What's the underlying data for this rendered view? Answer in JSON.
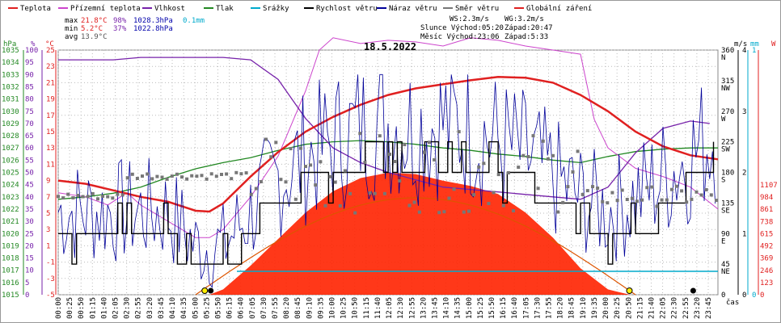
{
  "title": "18.5.2022",
  "legend": [
    {
      "label": "Teplota",
      "color": "#e02020"
    },
    {
      "label": "Přízemní teplota",
      "color": "#cc44cc"
    },
    {
      "label": "Vlhkost",
      "color": "#7722aa"
    },
    {
      "label": "Tlak",
      "color": "#228822"
    },
    {
      "label": "Srážky",
      "color": "#00aacc"
    },
    {
      "label": "Rychlost větru",
      "color": "#000000"
    },
    {
      "label": "Náraz větru",
      "color": "#000099"
    },
    {
      "label": "Směr větru",
      "color": "#777777"
    },
    {
      "label": "Globální záření",
      "color": "#e02020"
    }
  ],
  "stats": {
    "max": {
      "label": "max",
      "temp": "21.8°C",
      "hum": "98%",
      "press": "1028.3hPa",
      "rain": "0.1mm"
    },
    "min": {
      "label": "min",
      "temp": "5.2°C",
      "hum": "37%",
      "press": "1022.8hPa"
    },
    "avg": {
      "label": "avg",
      "temp": "13.9°C"
    }
  },
  "info": {
    "ws": "WS:2.3m/s",
    "wg": "WG:3.2m/s",
    "sun": "Slunce Východ:05:20",
    "sunset": "Západ:20:47",
    "moon": "Měsíc Východ:23:06",
    "moonset": "Západ:5:33"
  },
  "axes": {
    "hpa_unit": "hPa",
    "hum_unit": "%",
    "temp_unit": "°C",
    "ms_unit": "m/s",
    "mm_unit": "mm",
    "w_unit": "W",
    "time_label": "čas",
    "hpa_ticks": [
      "1035",
      "1034",
      "1033",
      "1032",
      "1031",
      "1030",
      "1029",
      "1028",
      "1027",
      "1026",
      "1025",
      "1024",
      "1023",
      "1022",
      "1021",
      "1020",
      "1019",
      "1018",
      "1017",
      "1016",
      "1015"
    ],
    "hum_ticks": [
      "100",
      "95",
      "90",
      "85",
      "80",
      "75",
      "70",
      "65",
      "60",
      "55",
      "50",
      "45",
      "40",
      "35",
      "30",
      "25",
      "20",
      "15",
      "10",
      "5",
      "0"
    ],
    "temp_ticks": [
      "25",
      "23",
      "21",
      "19",
      "17",
      "15",
      "13",
      "11",
      "9",
      "7",
      "5",
      "3",
      "1",
      "-1",
      "-3",
      "-5"
    ],
    "dir_ticks": [
      {
        "deg": "360",
        "dir": "N"
      },
      {
        "deg": "315",
        "dir": "NW"
      },
      {
        "deg": "270",
        "dir": "W"
      },
      {
        "deg": "225",
        "dir": "SW"
      },
      {
        "deg": "180",
        "dir": "S"
      },
      {
        "deg": "135",
        "dir": "SE"
      },
      {
        "deg": "90",
        "dir": "E"
      },
      {
        "deg": "45",
        "dir": "NE"
      },
      {
        "deg": "0",
        "dir": ""
      }
    ],
    "ms_ticks": [
      "4",
      "3",
      "2",
      "1",
      "0"
    ],
    "mm_ticks": [
      "1",
      "0"
    ],
    "w_ticks": [
      "1107",
      "984",
      "861",
      "738",
      "615",
      "492",
      "369",
      "246",
      "123",
      "0"
    ]
  },
  "colors": {
    "temp": "#e02020",
    "dew": "#cc44cc",
    "hum": "#7722aa",
    "press": "#228822",
    "rain": "#00aacc",
    "wind": "#000000",
    "gust": "#000099",
    "dir": "#777777",
    "rad": "#ff2200",
    "grid": "#bbbbbb"
  },
  "chart_data": {
    "type": "line",
    "title": "18.5.2022",
    "time_labels": [
      "00:00",
      "00:25",
      "00:50",
      "01:15",
      "01:40",
      "02:05",
      "02:30",
      "02:55",
      "03:20",
      "03:45",
      "04:10",
      "04:35",
      "05:00",
      "05:25",
      "05:50",
      "06:15",
      "06:40",
      "07:05",
      "07:30",
      "07:55",
      "08:20",
      "08:45",
      "09:10",
      "09:35",
      "10:00",
      "10:25",
      "10:50",
      "11:15",
      "11:40",
      "12:05",
      "12:30",
      "12:55",
      "13:20",
      "13:45",
      "14:10",
      "14:35",
      "15:00",
      "15:25",
      "15:50",
      "16:15",
      "16:40",
      "17:05",
      "17:30",
      "17:55",
      "18:20",
      "18:45",
      "19:10",
      "19:35",
      "20:00",
      "20:25",
      "20:50",
      "21:15",
      "21:40",
      "22:05",
      "22:30",
      "22:55",
      "23:20",
      "23:45"
    ],
    "series": [
      {
        "name": "Teplota",
        "unit": "°C",
        "x_hours": [
          0,
          1,
          2,
          3,
          4,
          5,
          5.5,
          6,
          7,
          8,
          9,
          10,
          11,
          12,
          13,
          14,
          15,
          16,
          17,
          18,
          19,
          20,
          21,
          22,
          23,
          24
        ],
        "values": [
          9.0,
          8.6,
          7.8,
          7.0,
          6.4,
          5.3,
          5.2,
          6.2,
          9.5,
          12.5,
          15.0,
          16.8,
          18.3,
          19.5,
          20.3,
          20.8,
          21.3,
          21.7,
          21.6,
          21.0,
          19.5,
          17.5,
          15.0,
          13.2,
          12.1,
          11.6
        ]
      },
      {
        "name": "Přízemní teplota",
        "unit": "°C",
        "x_hours": [
          0,
          1,
          1.8,
          2.5,
          3,
          4,
          5,
          5.5,
          6,
          7,
          8,
          9,
          9.5,
          10,
          11,
          12,
          13,
          14,
          15,
          16,
          17,
          18,
          19,
          19.5,
          20,
          21,
          22,
          23,
          24
        ],
        "values": [
          7.5,
          7.0,
          6.0,
          7.5,
          6.0,
          4.0,
          2.0,
          2.0,
          3.0,
          7.0,
          12.0,
          20.0,
          25.0,
          26.5,
          25.8,
          26.2,
          26.0,
          25.5,
          26.5,
          26.2,
          25.5,
          25.0,
          24.5,
          16.5,
          13.0,
          10.5,
          9.5,
          8.2,
          5.5
        ]
      },
      {
        "name": "Vlhkost",
        "unit": "%",
        "x_hours": [
          0,
          1,
          2,
          3,
          4,
          5,
          6,
          7,
          8,
          9,
          10,
          11,
          12,
          13,
          14,
          15,
          16,
          17,
          18,
          19,
          20,
          21,
          22,
          23,
          23.7
        ],
        "values": [
          96,
          96,
          96,
          97,
          97,
          97,
          97,
          96,
          88,
          72,
          60,
          54,
          50,
          47,
          44,
          43,
          42,
          41,
          40,
          39,
          44,
          58,
          68,
          71,
          70
        ]
      },
      {
        "name": "Tlak",
        "unit": "hPa",
        "x_hours": [
          0,
          1,
          2,
          3,
          4,
          5,
          6,
          7,
          8,
          9,
          10,
          11,
          12,
          13,
          14,
          15,
          16,
          17,
          18,
          19,
          20,
          21,
          22,
          23,
          24
        ],
        "values": [
          1022.8,
          1023.0,
          1023.3,
          1023.8,
          1024.6,
          1025.3,
          1025.8,
          1026.2,
          1026.8,
          1027.3,
          1027.5,
          1027.6,
          1027.5,
          1027.3,
          1027.0,
          1026.8,
          1026.5,
          1026.3,
          1026.0,
          1025.8,
          1026.3,
          1026.7,
          1026.9,
          1027.0,
          1027.0
        ]
      },
      {
        "name": "Srážky",
        "unit": "mm",
        "note": "0.1mm max"
      },
      {
        "name": "Rychlost větru",
        "unit": "m/s",
        "x_hours": [
          0,
          1,
          2,
          3,
          4,
          5,
          6,
          7,
          8,
          9,
          10,
          11,
          12,
          13,
          14,
          15,
          16,
          17,
          18,
          19,
          20,
          21,
          22,
          23,
          24
        ],
        "values": [
          1.0,
          1.0,
          1.0,
          1.0,
          1.0,
          0.5,
          0.5,
          1.0,
          1.5,
          1.8,
          2.0,
          2.2,
          2.3,
          2.2,
          2.3,
          2.2,
          2.0,
          1.8,
          1.5,
          1.2,
          1.0,
          1.2,
          1.5,
          1.8,
          2.2
        ]
      },
      {
        "name": "Náraz větru",
        "unit": "m/s",
        "max": 3.2
      },
      {
        "name": "Směr větru",
        "unit": "°"
      },
      {
        "name": "Globální záření",
        "unit": "W",
        "x_hours": [
          5.5,
          6,
          7,
          8,
          9,
          10,
          11,
          12,
          13,
          14,
          15,
          16,
          17,
          18,
          19,
          20,
          20.8
        ],
        "values": [
          0,
          40,
          220,
          420,
          620,
          780,
          880,
          920,
          910,
          860,
          820,
          760,
          620,
          430,
          200,
          40,
          0
        ]
      }
    ],
    "ylim_temp": [
      -5,
      25
    ],
    "ylim_hum": [
      0,
      100
    ],
    "ylim_press": [
      1015,
      1035
    ],
    "ylim_wind": [
      0,
      4
    ],
    "ylim_rad": [
      0,
      1107
    ]
  }
}
